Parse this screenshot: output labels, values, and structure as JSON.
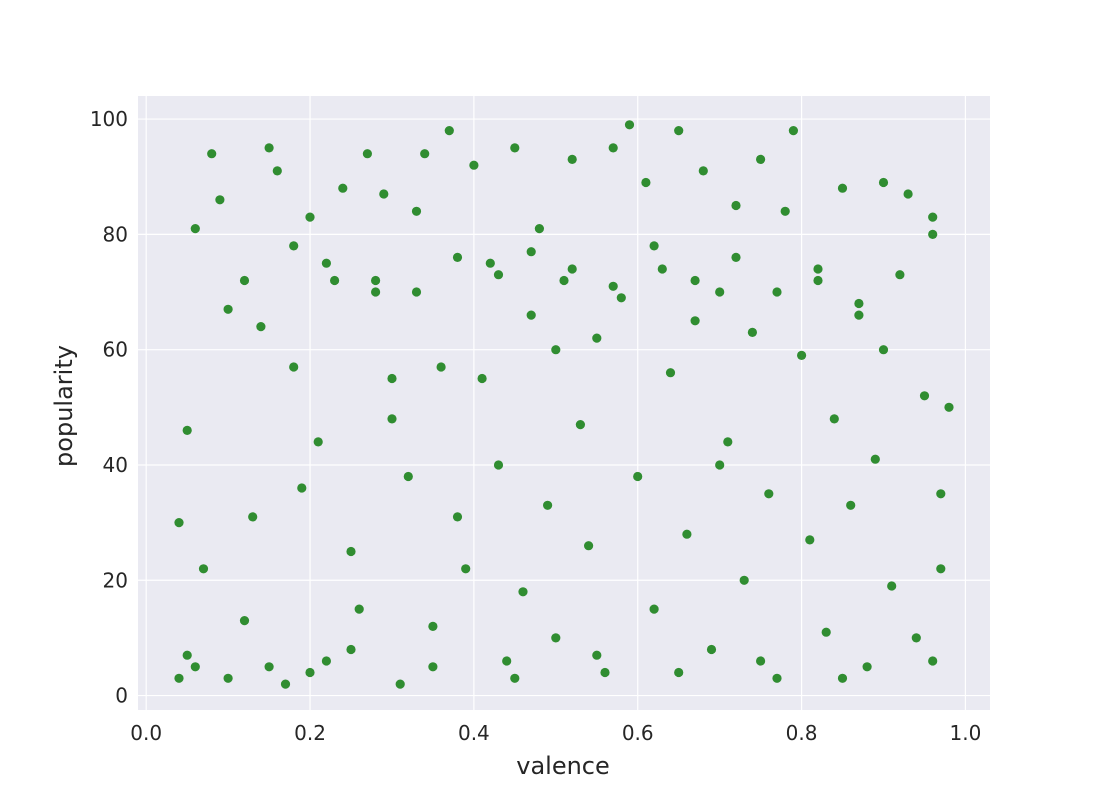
{
  "chart_data": {
    "type": "scatter",
    "title": "",
    "xlabel": "valence",
    "ylabel": "popularity",
    "xlim": [
      -0.01,
      1.03
    ],
    "ylim": [
      -2.5,
      104
    ],
    "x_ticks": [
      0.0,
      0.2,
      0.4,
      0.6,
      0.8,
      1.0
    ],
    "x_tick_labels": [
      "0.0",
      "0.2",
      "0.4",
      "0.6",
      "0.8",
      "1.0"
    ],
    "y_ticks": [
      0,
      20,
      40,
      60,
      80,
      100
    ],
    "y_tick_labels": [
      "0",
      "20",
      "40",
      "60",
      "80",
      "100"
    ],
    "grid": true,
    "legend": "none",
    "colors": {
      "point": "#0f7d0f",
      "plot_background": "#eaeaf2",
      "grid": "#ffffff",
      "text": "#262626"
    },
    "series": [
      {
        "values": [
          [
            0.04,
            3
          ],
          [
            0.05,
            7
          ],
          [
            0.06,
            5
          ],
          [
            0.07,
            22
          ],
          [
            0.04,
            30
          ],
          [
            0.05,
            46
          ],
          [
            0.08,
            94
          ],
          [
            0.09,
            86
          ],
          [
            0.1,
            67
          ],
          [
            0.06,
            81
          ],
          [
            0.12,
            13
          ],
          [
            0.13,
            31
          ],
          [
            0.14,
            64
          ],
          [
            0.15,
            95
          ],
          [
            0.16,
            91
          ],
          [
            0.17,
            2
          ],
          [
            0.18,
            57
          ],
          [
            0.19,
            36
          ],
          [
            0.2,
            83
          ],
          [
            0.21,
            44
          ],
          [
            0.22,
            6
          ],
          [
            0.23,
            72
          ],
          [
            0.24,
            88
          ],
          [
            0.25,
            25
          ],
          [
            0.26,
            15
          ],
          [
            0.27,
            94
          ],
          [
            0.28,
            70
          ],
          [
            0.29,
            87
          ],
          [
            0.3,
            48
          ],
          [
            0.31,
            2
          ],
          [
            0.32,
            38
          ],
          [
            0.33,
            84
          ],
          [
            0.34,
            94
          ],
          [
            0.35,
            12
          ],
          [
            0.36,
            57
          ],
          [
            0.37,
            98
          ],
          [
            0.38,
            31
          ],
          [
            0.39,
            22
          ],
          [
            0.4,
            92
          ],
          [
            0.41,
            55
          ],
          [
            0.42,
            75
          ],
          [
            0.43,
            40
          ],
          [
            0.44,
            6
          ],
          [
            0.45,
            95
          ],
          [
            0.46,
            18
          ],
          [
            0.47,
            66
          ],
          [
            0.48,
            81
          ],
          [
            0.49,
            33
          ],
          [
            0.5,
            10
          ],
          [
            0.51,
            72
          ],
          [
            0.52,
            93
          ],
          [
            0.53,
            47
          ],
          [
            0.54,
            26
          ],
          [
            0.55,
            62
          ],
          [
            0.56,
            4
          ],
          [
            0.57,
            95
          ],
          [
            0.58,
            69
          ],
          [
            0.59,
            99
          ],
          [
            0.6,
            38
          ],
          [
            0.61,
            89
          ],
          [
            0.62,
            15
          ],
          [
            0.63,
            74
          ],
          [
            0.64,
            56
          ],
          [
            0.65,
            98
          ],
          [
            0.66,
            28
          ],
          [
            0.67,
            65
          ],
          [
            0.68,
            91
          ],
          [
            0.69,
            8
          ],
          [
            0.7,
            70
          ],
          [
            0.71,
            44
          ],
          [
            0.72,
            85
          ],
          [
            0.73,
            20
          ],
          [
            0.74,
            63
          ],
          [
            0.75,
            93
          ],
          [
            0.76,
            35
          ],
          [
            0.77,
            3
          ],
          [
            0.78,
            84
          ],
          [
            0.79,
            98
          ],
          [
            0.8,
            59
          ],
          [
            0.81,
            27
          ],
          [
            0.82,
            72
          ],
          [
            0.83,
            11
          ],
          [
            0.84,
            48
          ],
          [
            0.85,
            88
          ],
          [
            0.86,
            33
          ],
          [
            0.87,
            66
          ],
          [
            0.88,
            5
          ],
          [
            0.89,
            41
          ],
          [
            0.9,
            89
          ],
          [
            0.91,
            19
          ],
          [
            0.92,
            73
          ],
          [
            0.93,
            87
          ],
          [
            0.94,
            10
          ],
          [
            0.95,
            52
          ],
          [
            0.96,
            80
          ],
          [
            0.97,
            35
          ],
          [
            0.96,
            6
          ],
          [
            0.98,
            50
          ],
          [
            0.97,
            22
          ],
          [
            0.96,
            83
          ],
          [
            0.1,
            3
          ],
          [
            0.15,
            5
          ],
          [
            0.2,
            4
          ],
          [
            0.25,
            8
          ],
          [
            0.35,
            5
          ],
          [
            0.45,
            3
          ],
          [
            0.55,
            7
          ],
          [
            0.65,
            4
          ],
          [
            0.75,
            6
          ],
          [
            0.85,
            3
          ],
          [
            0.12,
            72
          ],
          [
            0.18,
            78
          ],
          [
            0.22,
            75
          ],
          [
            0.28,
            72
          ],
          [
            0.33,
            70
          ],
          [
            0.38,
            76
          ],
          [
            0.43,
            73
          ],
          [
            0.47,
            77
          ],
          [
            0.52,
            74
          ],
          [
            0.57,
            71
          ],
          [
            0.62,
            78
          ],
          [
            0.67,
            72
          ],
          [
            0.72,
            76
          ],
          [
            0.77,
            70
          ],
          [
            0.82,
            74
          ],
          [
            0.87,
            68
          ],
          [
            0.3,
            55
          ],
          [
            0.5,
            60
          ],
          [
            0.7,
            40
          ],
          [
            0.9,
            60
          ]
        ]
      }
    ]
  }
}
